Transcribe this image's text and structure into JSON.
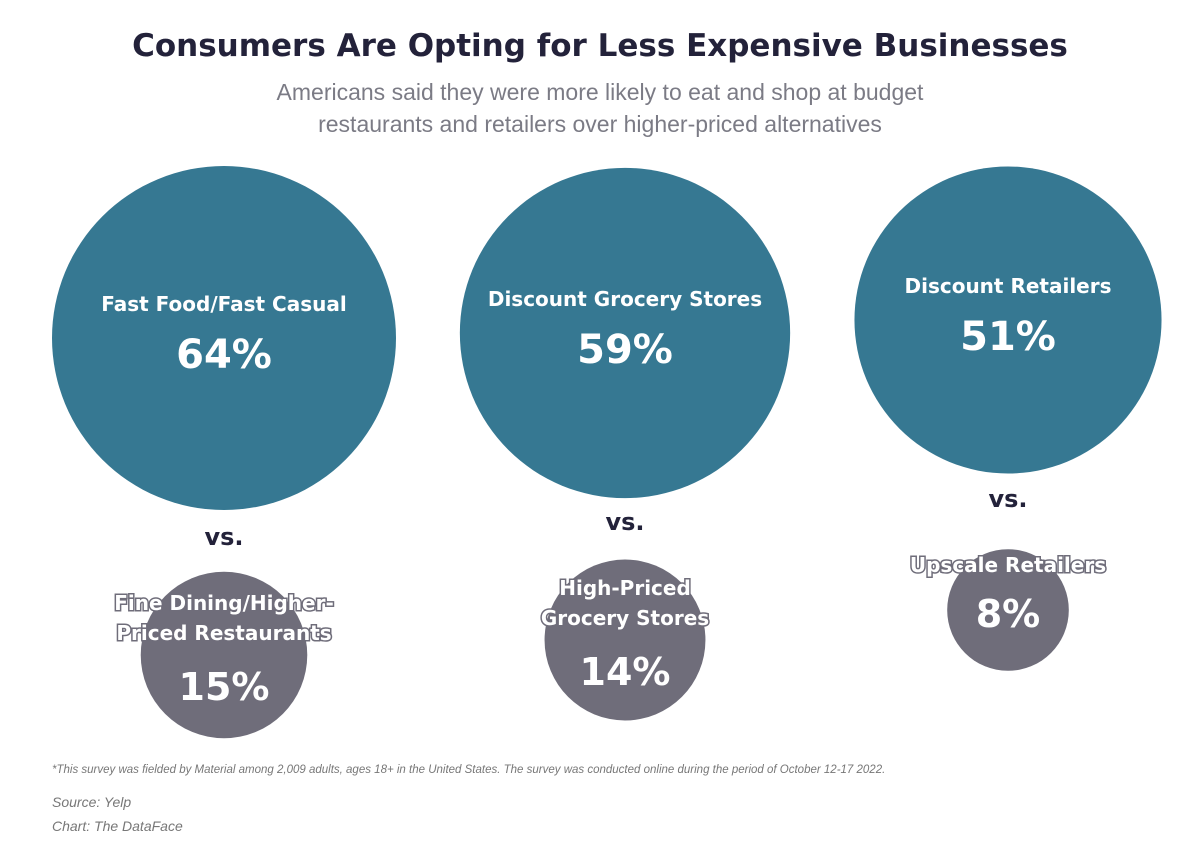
{
  "title": "Consumers Are Opting for Less Expensive Businesses",
  "subtitle": "Americans said they were more likely to eat and shop at budget restaurants and retailers over higher-priced alternatives",
  "vs_label": "vs.",
  "footnote": "*This survey was fielded by Material among 2,009 adults, ages 18+ in the United States. The survey was conducted online during the period of October 12-17 2022.",
  "source": "Source: Yelp",
  "credit": "Chart: The DataFace",
  "colors": {
    "budget": "#367892",
    "premium": "#6f6d7a",
    "title": "#23223a"
  },
  "chart_data": {
    "type": "bubble",
    "unit": "%",
    "pairs": [
      {
        "budget": {
          "label": [
            "Fast Food/Fast Casual"
          ],
          "value": 64
        },
        "premium": {
          "label": [
            "Fine Dining/Higher-",
            "Priced Restaurants"
          ],
          "value": 15
        }
      },
      {
        "budget": {
          "label": [
            "Discount Grocery Stores"
          ],
          "value": 59
        },
        "premium": {
          "label": [
            "High-Priced",
            "Grocery Stores"
          ],
          "value": 14
        }
      },
      {
        "budget": {
          "label": [
            "Discount Retailers"
          ],
          "value": 51
        },
        "premium": {
          "label": [
            "Upscale Retailers"
          ],
          "value": 8
        }
      }
    ]
  }
}
